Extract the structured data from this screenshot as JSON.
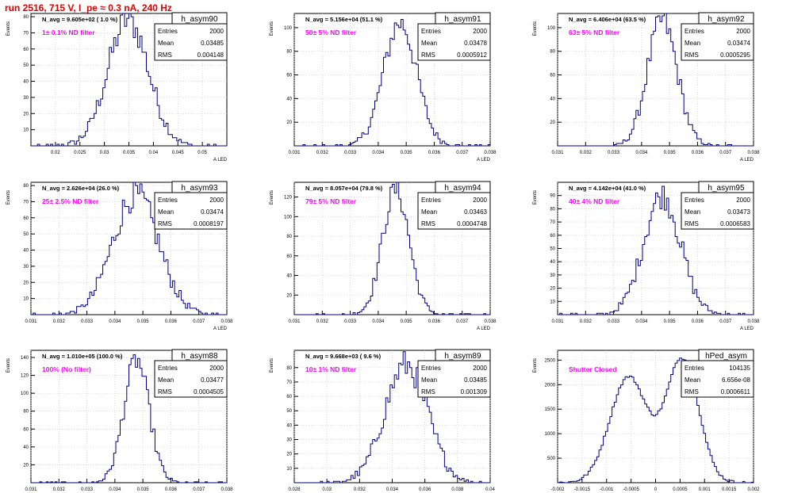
{
  "page": {
    "title": "run 2516,   715 V, I_pe ≈ 0.3 nA, 240 Hz"
  },
  "colors": {
    "title": "#e00000",
    "filter_label": "#ff00ff",
    "histogram": "#000080",
    "axes": "#000000",
    "grid": "#c8c8c8",
    "stat_box_border": "#000000"
  },
  "chart_data": [
    {
      "type": "histogram",
      "title": "h_asym90",
      "nav": "N_avg = 9.605e+02 ( 1.0 %)",
      "label": "1± 0.1% ND filter",
      "ylabel": "Events",
      "xlabel": "A_{LED}",
      "stats": [
        [
          "Entries",
          "2000"
        ],
        [
          "Mean",
          "0.03485"
        ],
        [
          "RMS",
          "0.004148"
        ]
      ],
      "xlim": [
        0.015,
        0.055
      ],
      "ylim": [
        0,
        82
      ],
      "xticks": [
        "0.02",
        "0.025",
        "0.03",
        "0.035",
        "0.04",
        "0.045",
        "0.05"
      ],
      "yticks": [
        "10",
        "20",
        "30",
        "40",
        "50",
        "60",
        "70",
        "80"
      ],
      "grid": true,
      "shape": {
        "mu": 0.03485,
        "sigma": 0.004148,
        "peak": 78
      }
    },
    {
      "type": "histogram",
      "title": "h_asym91",
      "nav": "N_avg = 5.156e+04 (51.1 %)",
      "label": "50± 5% ND filter",
      "ylabel": "Events",
      "xlabel": "A_{LED}",
      "stats": [
        [
          "Entries",
          "2000"
        ],
        [
          "Mean",
          "0.03478"
        ],
        [
          "RMS",
          "0.0005912"
        ]
      ],
      "xlim": [
        0.031,
        0.038
      ],
      "ylim": [
        0,
        112
      ],
      "xticks": [
        "0.031",
        "0.032",
        "0.033",
        "0.034",
        "0.035",
        "0.036",
        "0.037",
        "0.038"
      ],
      "yticks": [
        "20",
        "40",
        "60",
        "80",
        "100"
      ],
      "grid": true,
      "shape": {
        "mu": 0.03478,
        "sigma": 0.0005912,
        "peak": 104
      }
    },
    {
      "type": "histogram",
      "title": "h_asym92",
      "nav": "N_avg = 6.406e+04 (63.5 %)",
      "label": "63± 5% ND filter",
      "ylabel": "Events",
      "xlabel": "A_{LED}",
      "stats": [
        [
          "Entries",
          "2000"
        ],
        [
          "Mean",
          "0.03474"
        ],
        [
          "RMS",
          "0.0005295"
        ]
      ],
      "xlim": [
        0.031,
        0.038
      ],
      "ylim": [
        0,
        112
      ],
      "xticks": [
        "0.031",
        "0.032",
        "0.033",
        "0.034",
        "0.035",
        "0.036",
        "0.037",
        "0.038"
      ],
      "yticks": [
        "20",
        "40",
        "60",
        "80",
        "100"
      ],
      "grid": true,
      "shape": {
        "mu": 0.03474,
        "sigma": 0.0005295,
        "peak": 106
      }
    },
    {
      "type": "histogram",
      "title": "h_asym93",
      "nav": "N_avg = 2.626e+04 (26.0 %)",
      "label": "25± 2.5% ND filter",
      "ylabel": "Events",
      "xlabel": "A_{LED}",
      "stats": [
        [
          "Entries",
          "2000"
        ],
        [
          "Mean",
          "0.03474"
        ],
        [
          "RMS",
          "0.0008197"
        ]
      ],
      "xlim": [
        0.031,
        0.038
      ],
      "ylim": [
        0,
        82
      ],
      "xticks": [
        "0.031",
        "0.032",
        "0.033",
        "0.034",
        "0.035",
        "0.036",
        "0.037",
        "0.038"
      ],
      "yticks": [
        "10",
        "20",
        "30",
        "40",
        "50",
        "60",
        "70",
        "80"
      ],
      "grid": true,
      "shape": {
        "mu": 0.03474,
        "sigma": 0.0008197,
        "peak": 74
      }
    },
    {
      "type": "histogram",
      "title": "h_asym94",
      "nav": "N_avg = 8.057e+04 (79.8 %)",
      "label": "79± 5% ND filter",
      "ylabel": "Events",
      "xlabel": "A_{LED}",
      "stats": [
        [
          "Entries",
          "2000"
        ],
        [
          "Mean",
          "0.03463"
        ],
        [
          "RMS",
          "0.0004748"
        ]
      ],
      "xlim": [
        0.031,
        0.038
      ],
      "ylim": [
        0,
        135
      ],
      "xticks": [
        "0.031",
        "0.032",
        "0.033",
        "0.034",
        "0.035",
        "0.036",
        "0.037",
        "0.038"
      ],
      "yticks": [
        "20",
        "40",
        "60",
        "80",
        "100",
        "120"
      ],
      "grid": true,
      "shape": {
        "mu": 0.03463,
        "sigma": 0.0004748,
        "peak": 128
      }
    },
    {
      "type": "histogram",
      "title": "h_asym95",
      "nav": "N_avg = 4.142e+04 (41.0 %)",
      "label": "40± 4% ND filter",
      "ylabel": "Events",
      "xlabel": "A_{LED}",
      "stats": [
        [
          "Entries",
          "2000"
        ],
        [
          "Mean",
          "0.03473"
        ],
        [
          "RMS",
          "0.0006583"
        ]
      ],
      "xlim": [
        0.031,
        0.038
      ],
      "ylim": [
        0,
        100
      ],
      "xticks": [
        "0.031",
        "0.032",
        "0.033",
        "0.034",
        "0.035",
        "0.036",
        "0.037",
        "0.038"
      ],
      "yticks": [
        "10",
        "20",
        "30",
        "40",
        "50",
        "60",
        "70",
        "80",
        "90"
      ],
      "grid": true,
      "shape": {
        "mu": 0.03473,
        "sigma": 0.0006583,
        "peak": 90
      }
    },
    {
      "type": "histogram",
      "title": "h_asym88",
      "nav": "N_avg = 1.010e+05 (100.0 %)",
      "label": "100% (No filter)",
      "ylabel": "Events",
      "xlabel": "A_{LED}",
      "stats": [
        [
          "Entries",
          "2000"
        ],
        [
          "Mean",
          "0.03477"
        ],
        [
          "RMS",
          "0.0004505"
        ]
      ],
      "xlim": [
        0.031,
        0.038
      ],
      "ylim": [
        0,
        148
      ],
      "xticks": [
        "0.031",
        "0.032",
        "0.033",
        "0.034",
        "0.035",
        "0.036",
        "0.037",
        "0.038"
      ],
      "yticks": [
        "20",
        "40",
        "60",
        "80",
        "100",
        "120",
        "140"
      ],
      "grid": true,
      "shape": {
        "mu": 0.03477,
        "sigma": 0.0004505,
        "peak": 137
      }
    },
    {
      "type": "histogram",
      "title": "h_asym89",
      "nav": "N_avg = 9.668e+03 ( 9.6 %)",
      "label": "10± 1% ND filter",
      "ylabel": "Events",
      "xlabel": "A_{LED}",
      "stats": [
        [
          "Entries",
          "2000"
        ],
        [
          "Mean",
          "0.03485"
        ],
        [
          "RMS",
          "0.001309"
        ]
      ],
      "xlim": [
        0.028,
        0.04
      ],
      "ylim": [
        0,
        92
      ],
      "xticks": [
        "0.028",
        "0.03",
        "0.032",
        "0.034",
        "0.036",
        "0.038",
        "0.04"
      ],
      "yticks": [
        "10",
        "20",
        "30",
        "40",
        "50",
        "60",
        "70",
        "80"
      ],
      "grid": true,
      "shape": {
        "mu": 0.03485,
        "sigma": 0.001309,
        "peak": 82
      }
    },
    {
      "type": "histogram",
      "title": "hPed_asym",
      "nav": "",
      "label": "Shutter Closed",
      "ylabel": "Events",
      "xlabel": "A_{LED}",
      "stats": [
        [
          "Entries",
          "104135"
        ],
        [
          "Mean",
          "6.656e-08"
        ],
        [
          "RMS",
          "0.0006611"
        ]
      ],
      "xlim": [
        -0.002,
        0.002
      ],
      "ylim": [
        0,
        2700
      ],
      "xticks": [
        "-0.002",
        "-0.0015",
        "-0.001",
        "-0.0005",
        "0",
        "0.0005",
        "0.001",
        "0.0015",
        "0.002"
      ],
      "yticks": [
        "500",
        "1000",
        "1500",
        "2000",
        "2500"
      ],
      "grid": true,
      "shape": {
        "bimodal": true,
        "peak": 2540
      }
    }
  ]
}
